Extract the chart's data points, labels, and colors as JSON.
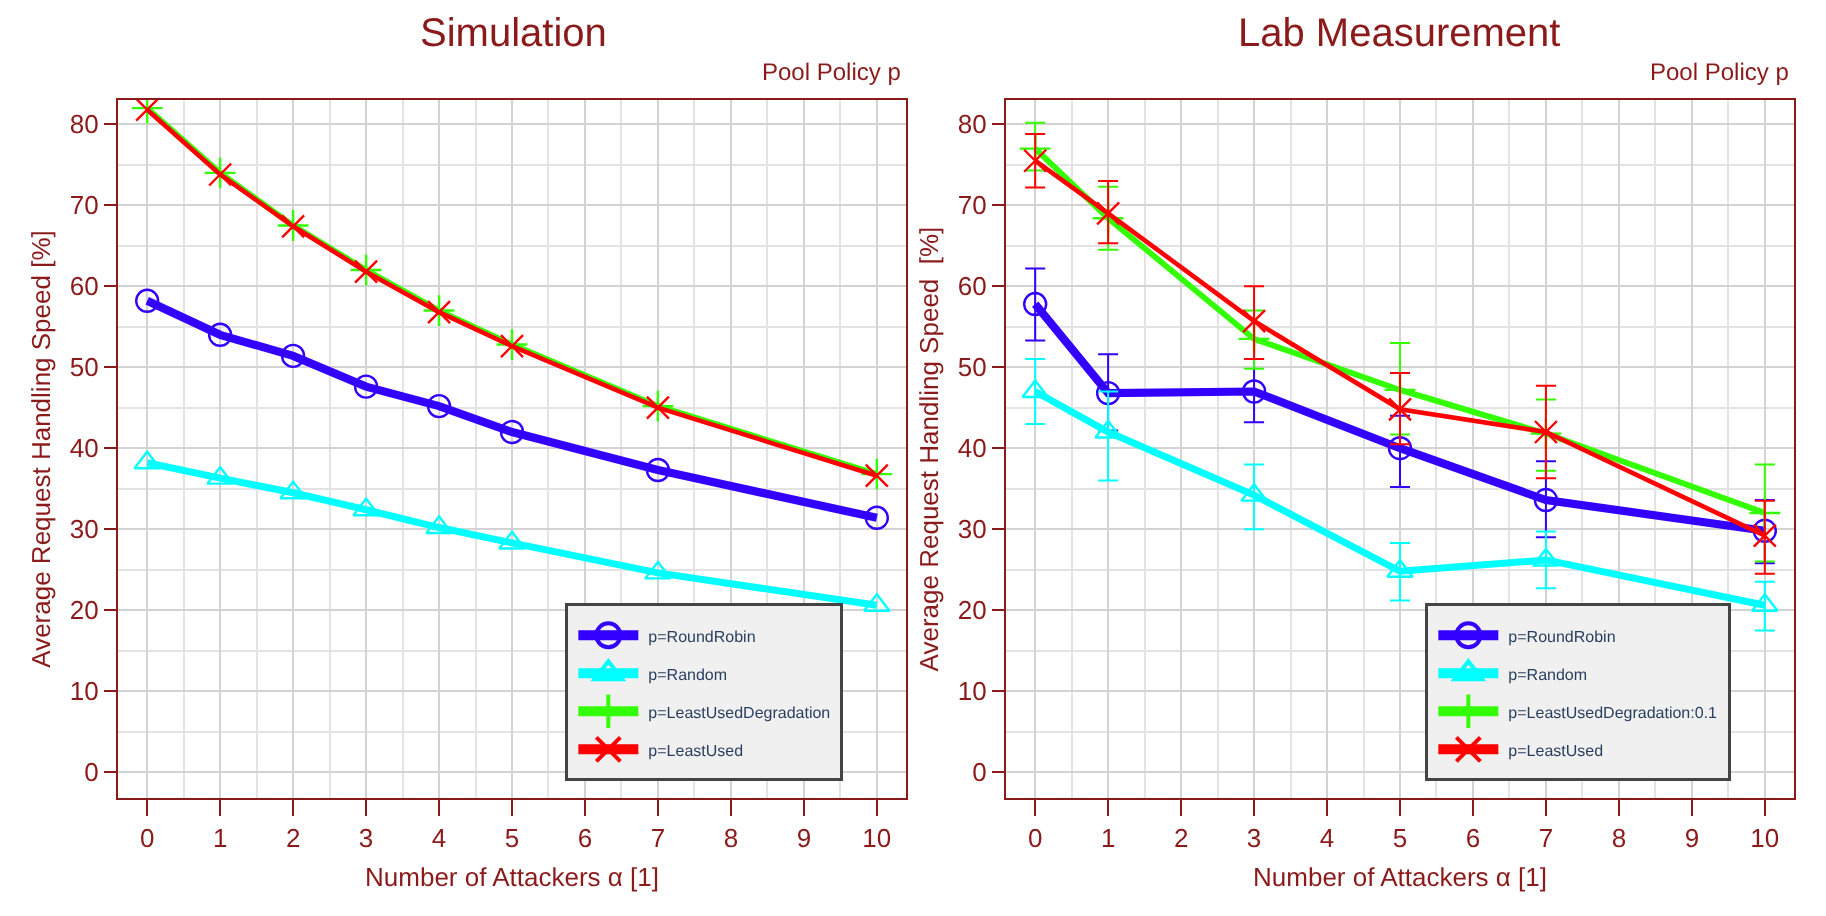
{
  "chart_data": [
    {
      "type": "line",
      "title": "Simulation",
      "xlabel": "Number of Attackers α [1]",
      "ylabel": "Average Request Handling Speed [%]",
      "legend_title": "Pool Policy p",
      "x": [
        0,
        1,
        2,
        3,
        4,
        5,
        7,
        10
      ],
      "xlim": [
        -0.4,
        10.4
      ],
      "ylim": [
        -3.2,
        83
      ],
      "xticks": [
        0,
        1,
        2,
        3,
        4,
        5,
        6,
        7,
        8,
        9,
        10
      ],
      "yticks": [
        0,
        10,
        20,
        30,
        40,
        50,
        60,
        70,
        80
      ],
      "grid": true,
      "legend": "bottom right",
      "series": [
        {
          "name": "p=RoundRobin",
          "color": "#3300ff",
          "marker": "circle",
          "values": [
            58.2,
            54,
            51.4,
            47.6,
            45.2,
            42,
            37.3,
            31.4
          ]
        },
        {
          "name": "p=Random",
          "color": "#00ffff",
          "marker": "triangle",
          "values": [
            38.2,
            36.3,
            34.5,
            32.4,
            30.2,
            28.3,
            24.6,
            20.6
          ]
        },
        {
          "name": "p=LeastUsedDegradation",
          "color": "#33ff00",
          "marker": "cross",
          "values": [
            82,
            74,
            67.5,
            62,
            57,
            52.8,
            45.2,
            36.8
          ]
        },
        {
          "name": "p=LeastUsed",
          "color": "#ff0000",
          "marker": "x",
          "values": [
            81.8,
            73.8,
            67.4,
            61.8,
            56.8,
            52.6,
            45,
            36.6
          ]
        }
      ]
    },
    {
      "type": "line",
      "title": "Lab Measurement",
      "xlabel": "Number of Attackers α [1]",
      "ylabel": "Average Request Handling Speed  [%]",
      "legend_title": "Pool Policy p",
      "x": [
        0,
        1,
        3,
        5,
        7,
        10
      ],
      "xlim": [
        -0.4,
        10.4
      ],
      "ylim": [
        -3.2,
        83
      ],
      "xticks": [
        0,
        1,
        2,
        3,
        4,
        5,
        6,
        7,
        8,
        9,
        10
      ],
      "yticks": [
        0,
        10,
        20,
        30,
        40,
        50,
        60,
        70,
        80
      ],
      "grid": true,
      "legend": "bottom right",
      "series": [
        {
          "name": "p=RoundRobin",
          "color": "#3300ff",
          "marker": "circle",
          "values": [
            57.8,
            46.8,
            47,
            40,
            33.6,
            29.8
          ],
          "errors": [
            [
              53.3,
              62.2
            ],
            [
              42.2,
              51.6
            ],
            [
              43.2,
              51
            ],
            [
              35.2,
              44
            ],
            [
              29,
              38.4
            ],
            [
              25.8,
              33.6
            ]
          ]
        },
        {
          "name": "p=Random",
          "color": "#00ffff",
          "marker": "triangle",
          "values": [
            47,
            42,
            34.2,
            24.8,
            26.2,
            20.6
          ],
          "errors": [
            [
              43,
              51
            ],
            [
              36,
              47
            ],
            [
              30,
              38
            ],
            [
              21.2,
              28.3
            ],
            [
              22.7,
              29.7
            ],
            [
              17.5,
              23.5
            ]
          ]
        },
        {
          "name": "p=LeastUsedDegradation:0.1",
          "color": "#33ff00",
          "marker": "cross",
          "values": [
            77,
            68.4,
            53.5,
            47.2,
            41.8,
            32
          ],
          "errors": [
            [
              74.3,
              80.2
            ],
            [
              64.5,
              72.3
            ],
            [
              49.8,
              57
            ],
            [
              41.7,
              53
            ],
            [
              37.2,
              46
            ],
            [
              26,
              38
            ]
          ]
        },
        {
          "name": "p=LeastUsed",
          "color": "#ff0000",
          "marker": "x",
          "values": [
            75.5,
            69,
            55.7,
            44.8,
            42,
            29.2
          ],
          "errors": [
            [
              72.2,
              78.8
            ],
            [
              65.3,
              73
            ],
            [
              51,
              60
            ],
            [
              40.5,
              49.3
            ],
            [
              36.3,
              47.7
            ],
            [
              24.5,
              33.5
            ]
          ]
        }
      ]
    }
  ]
}
